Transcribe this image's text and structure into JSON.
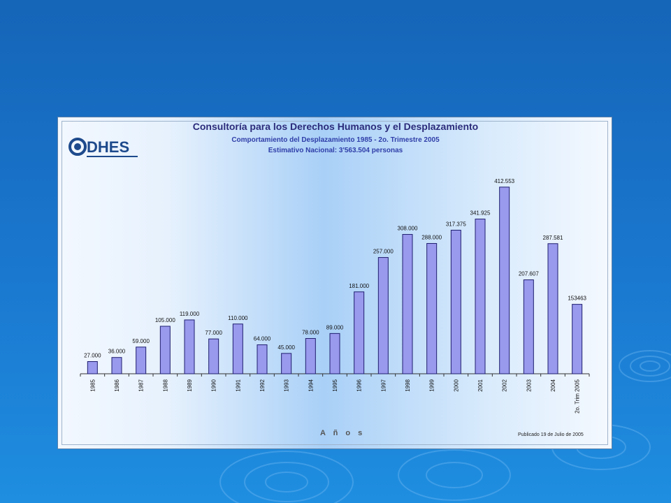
{
  "colors": {
    "background": "#1a72c8",
    "bar_fill": "#9999ee",
    "bar_stroke": "#1e1e6e",
    "title_color": "#2b2b7a",
    "subtitle_color": "#2f3ea8",
    "logo_color": "#1e4a8c"
  },
  "slide": {
    "logo_text": "CODHES",
    "title": "Consultoría para los Derechos Humanos y el Desplazamiento",
    "subtitle": "Comportamiento del Desplazamiento 1985 - 2o. Trimestre 2005",
    "subtitle2": "Estimativo Nacional: 3'563.504 personas",
    "published": "Publicado 19 de Julio de 2005"
  },
  "chart_data": {
    "type": "bar",
    "title": "Comportamiento del Desplazamiento 1985 - 2o. Trimestre 2005",
    "xlabel": "A ñ o s",
    "ylabel": "",
    "categories": [
      "1985",
      "1986",
      "1987",
      "1988",
      "1989",
      "1990",
      "1991",
      "1992",
      "1993",
      "1994",
      "1995",
      "1996",
      "1997",
      "1998",
      "1999",
      "2000",
      "2001",
      "2002",
      "2003",
      "2004",
      "2o. Trim 2005"
    ],
    "values": [
      27000,
      36000,
      59000,
      105000,
      119000,
      77000,
      110000,
      64000,
      45000,
      78000,
      89000,
      181000,
      257000,
      308000,
      288000,
      317375,
      341925,
      412553,
      207607,
      287581,
      153463
    ],
    "data_labels": [
      "27.000",
      "36.000",
      "59.000",
      "105.000",
      "119.000",
      "77.000",
      "110.000",
      "64.000",
      "45.000",
      "78.000",
      "89.000",
      "181.000",
      "257.000",
      "308.000",
      "288.000",
      "317.375",
      "341.925",
      "412.553",
      "207.607",
      "287.581",
      "153463"
    ],
    "ylim": [
      0,
      420000
    ],
    "grid": false,
    "legend": "none"
  }
}
